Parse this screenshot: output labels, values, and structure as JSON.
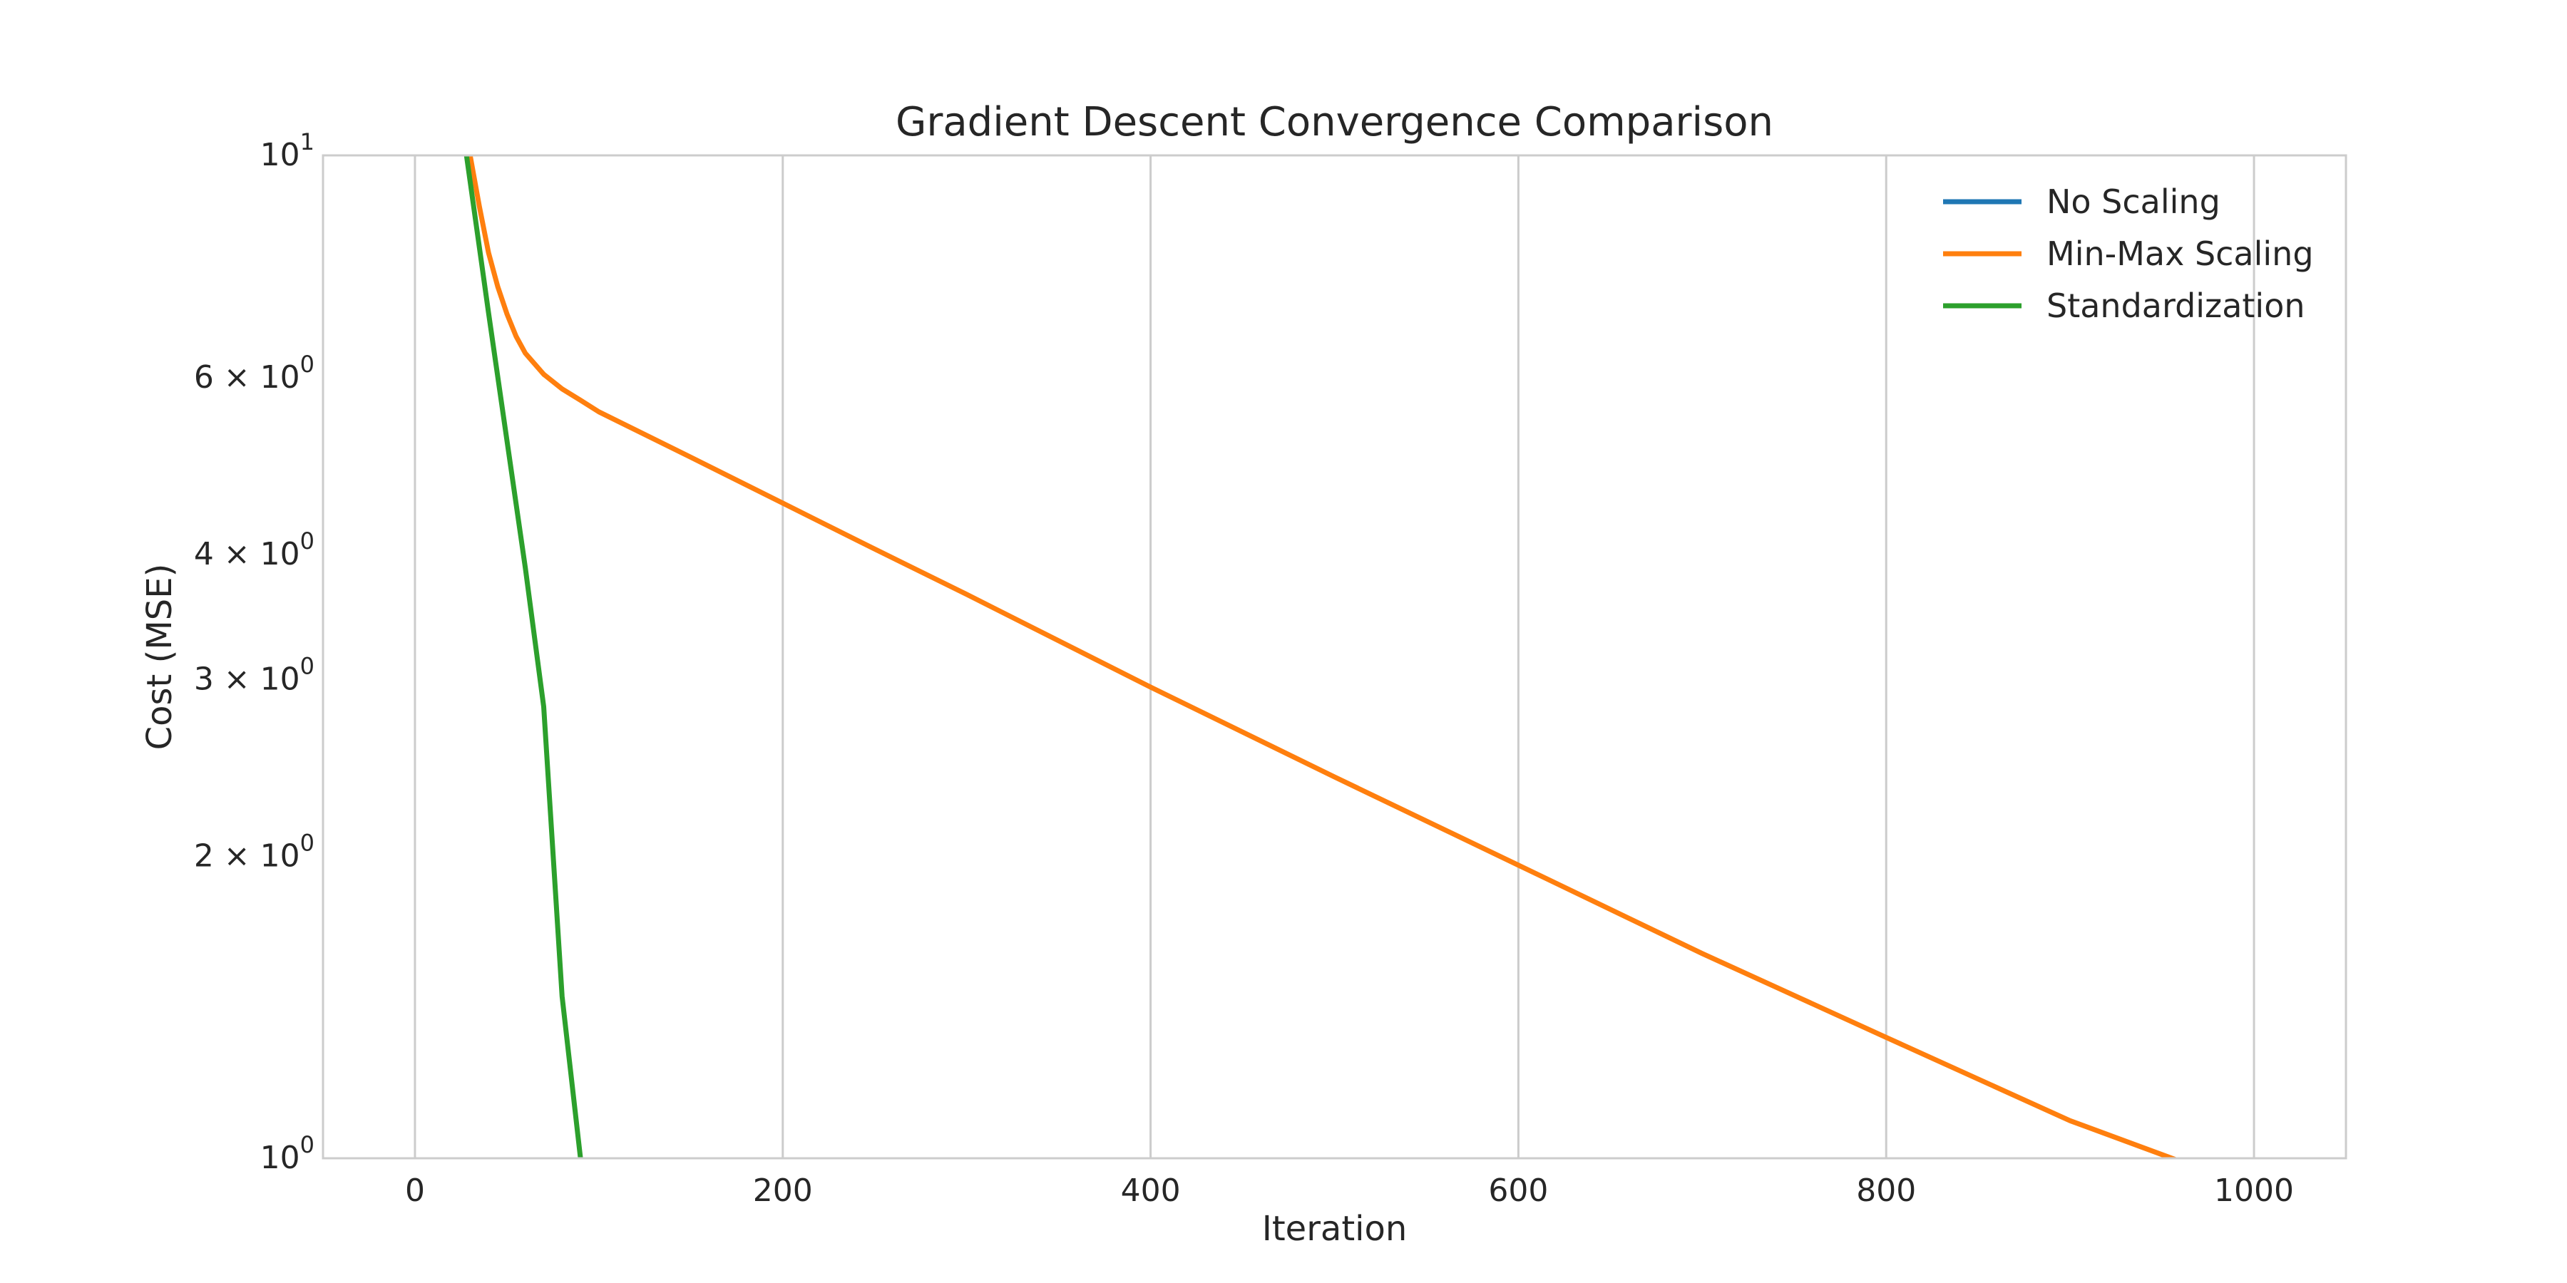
{
  "chart_data": {
    "type": "line",
    "title": "Gradient Descent Convergence Comparison",
    "xlabel": "Iteration",
    "ylabel": "Cost (MSE)",
    "xlim": [
      -50,
      1050
    ],
    "ylim": [
      1,
      10
    ],
    "yscale": "log",
    "grid": "vertical",
    "legend_position": "top-right",
    "x_ticks": [
      0,
      200,
      400,
      600,
      800,
      1000
    ],
    "x_tick_labels": [
      "0",
      "200",
      "400",
      "600",
      "800",
      "1000"
    ],
    "y_ticks": [
      {
        "value": 10,
        "mantissa": "",
        "base": "10",
        "exp": "1"
      },
      {
        "value": 6,
        "mantissa": "6 × ",
        "base": "10",
        "exp": "0"
      },
      {
        "value": 4,
        "mantissa": "4 × ",
        "base": "10",
        "exp": "0"
      },
      {
        "value": 3,
        "mantissa": "3 × ",
        "base": "10",
        "exp": "0"
      },
      {
        "value": 2,
        "mantissa": "2 × ",
        "base": "10",
        "exp": "0"
      },
      {
        "value": 1,
        "mantissa": "",
        "base": "10",
        "exp": "0"
      }
    ],
    "series": [
      {
        "name": "No Scaling",
        "color": "#1f77b4",
        "x": [],
        "y": []
      },
      {
        "name": "Min-Max Scaling",
        "color": "#ff7f0e",
        "x": [
          30,
          35,
          40,
          45,
          50,
          55,
          60,
          70,
          80,
          90,
          100,
          150,
          200,
          250,
          300,
          400,
          500,
          600,
          700,
          800,
          900,
          965
        ],
        "y": [
          10.0,
          8.9,
          8.0,
          7.4,
          6.95,
          6.6,
          6.35,
          6.05,
          5.85,
          5.7,
          5.55,
          5.0,
          4.5,
          4.05,
          3.65,
          2.95,
          2.4,
          1.96,
          1.6,
          1.32,
          1.09,
          0.985
        ]
      },
      {
        "name": "Standardization",
        "color": "#2ca02c",
        "x": [
          28,
          40,
          50,
          60,
          70,
          80,
          90
        ],
        "y": [
          10.0,
          6.97,
          5.2,
          3.88,
          2.82,
          1.45,
          1.0
        ]
      }
    ]
  }
}
